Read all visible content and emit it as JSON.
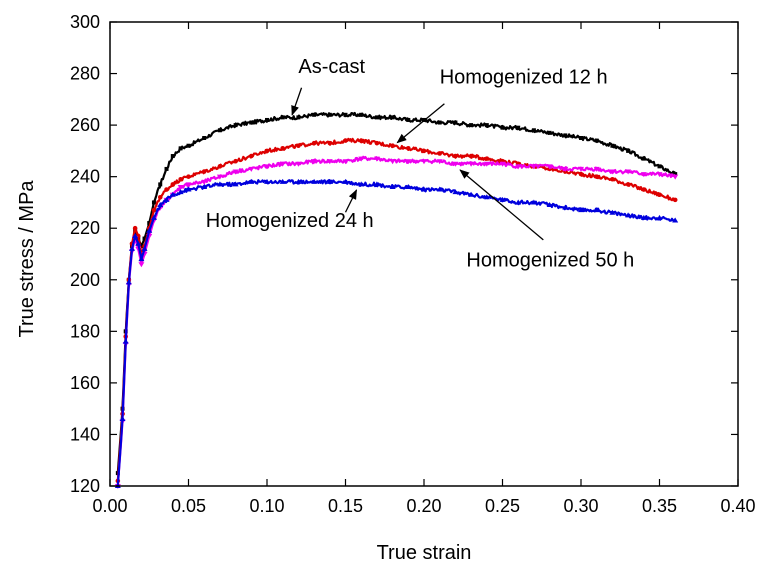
{
  "chart_data": {
    "type": "line",
    "title": "",
    "xlabel": "True strain",
    "ylabel": "True stress / MPa",
    "xlim": [
      0.0,
      0.4
    ],
    "ylim": [
      120,
      300
    ],
    "xticks": [
      "0.00",
      "0.05",
      "0.10",
      "0.15",
      "0.20",
      "0.25",
      "0.30",
      "0.35",
      "0.40"
    ],
    "yticks": [
      "120",
      "140",
      "160",
      "180",
      "200",
      "220",
      "240",
      "260",
      "280",
      "300"
    ],
    "grid": false,
    "legend": "none",
    "series": [
      {
        "name": "As-cast",
        "color": "#000000",
        "marker": "square",
        "x": [
          0.005,
          0.008,
          0.01,
          0.012,
          0.014,
          0.016,
          0.018,
          0.02,
          0.022,
          0.025,
          0.028,
          0.032,
          0.036,
          0.04,
          0.045,
          0.05,
          0.06,
          0.07,
          0.08,
          0.09,
          0.1,
          0.11,
          0.12,
          0.13,
          0.14,
          0.15,
          0.16,
          0.17,
          0.18,
          0.19,
          0.2,
          0.21,
          0.22,
          0.23,
          0.24,
          0.25,
          0.26,
          0.27,
          0.28,
          0.29,
          0.3,
          0.31,
          0.32,
          0.33,
          0.34,
          0.35,
          0.36
        ],
        "y": [
          125,
          150,
          180,
          200,
          213,
          219,
          216,
          213,
          216,
          222,
          230,
          237,
          243,
          248,
          251,
          252,
          255,
          258,
          260,
          261,
          262,
          263,
          263,
          264,
          264,
          264,
          264,
          263,
          263,
          262,
          262,
          261,
          261,
          260,
          260,
          259,
          259,
          258,
          257,
          256,
          255,
          254,
          252,
          250,
          247,
          244,
          241
        ]
      },
      {
        "name": "Homogenized 12 h",
        "color": "#dd0000",
        "marker": "circle",
        "x": [
          0.005,
          0.008,
          0.01,
          0.012,
          0.014,
          0.016,
          0.018,
          0.02,
          0.022,
          0.025,
          0.028,
          0.032,
          0.036,
          0.04,
          0.045,
          0.05,
          0.06,
          0.07,
          0.08,
          0.09,
          0.1,
          0.11,
          0.12,
          0.13,
          0.14,
          0.15,
          0.16,
          0.17,
          0.18,
          0.19,
          0.2,
          0.21,
          0.22,
          0.23,
          0.24,
          0.25,
          0.26,
          0.27,
          0.28,
          0.29,
          0.3,
          0.31,
          0.32,
          0.33,
          0.34,
          0.35,
          0.36
        ],
        "y": [
          122,
          148,
          178,
          200,
          214,
          220,
          217,
          210,
          213,
          220,
          227,
          232,
          235,
          237,
          239,
          240,
          242,
          244,
          246,
          248,
          250,
          251,
          252,
          253,
          253,
          254,
          254,
          253,
          252,
          251,
          250,
          249,
          248,
          248,
          247,
          246,
          245,
          244,
          243,
          242,
          241,
          240,
          239,
          237,
          235,
          233,
          231
        ]
      },
      {
        "name": "Homogenized 50 h",
        "color": "#ee00ee",
        "marker": "triangle-down",
        "x": [
          0.005,
          0.008,
          0.01,
          0.012,
          0.014,
          0.016,
          0.018,
          0.02,
          0.022,
          0.025,
          0.028,
          0.032,
          0.036,
          0.04,
          0.045,
          0.05,
          0.06,
          0.07,
          0.08,
          0.09,
          0.1,
          0.11,
          0.12,
          0.13,
          0.14,
          0.15,
          0.16,
          0.17,
          0.18,
          0.19,
          0.2,
          0.21,
          0.22,
          0.23,
          0.24,
          0.25,
          0.26,
          0.27,
          0.28,
          0.29,
          0.3,
          0.31,
          0.32,
          0.33,
          0.34,
          0.35,
          0.36
        ],
        "y": [
          120,
          145,
          175,
          198,
          211,
          216,
          212,
          206,
          210,
          217,
          223,
          228,
          231,
          233,
          236,
          237,
          238,
          240,
          242,
          243,
          244,
          245,
          245,
          246,
          246,
          246,
          247,
          247,
          246,
          246,
          246,
          246,
          245,
          245,
          245,
          245,
          244,
          244,
          244,
          243,
          243,
          243,
          242,
          242,
          241,
          241,
          240
        ]
      },
      {
        "name": "Homogenized 24 h",
        "color": "#0000dd",
        "marker": "triangle-up",
        "x": [
          0.005,
          0.008,
          0.01,
          0.012,
          0.014,
          0.016,
          0.018,
          0.02,
          0.022,
          0.025,
          0.028,
          0.032,
          0.036,
          0.04,
          0.045,
          0.05,
          0.06,
          0.07,
          0.08,
          0.09,
          0.1,
          0.11,
          0.12,
          0.13,
          0.14,
          0.15,
          0.16,
          0.17,
          0.18,
          0.19,
          0.2,
          0.21,
          0.22,
          0.23,
          0.24,
          0.25,
          0.26,
          0.27,
          0.28,
          0.29,
          0.3,
          0.31,
          0.32,
          0.33,
          0.34,
          0.35,
          0.36
        ],
        "y": [
          120,
          146,
          176,
          199,
          212,
          217,
          214,
          208,
          212,
          219,
          224,
          229,
          231,
          233,
          234,
          235,
          236,
          237,
          237,
          238,
          238,
          238,
          238,
          238,
          238,
          238,
          237,
          237,
          236,
          236,
          235,
          235,
          234,
          233,
          232,
          231,
          230,
          230,
          229,
          228,
          227,
          227,
          226,
          225,
          224,
          224,
          223
        ]
      }
    ],
    "annotations": [
      {
        "text": "As-cast",
        "text_x": 0.12,
        "text_y": 280.2,
        "anchor": "start",
        "arrow_from": [
          0.122,
          274.5
        ],
        "arrow_to": [
          0.116,
          264.0
        ]
      },
      {
        "text": "Homogenized 12 h",
        "text_x": 0.21,
        "text_y": 276.2,
        "anchor": "start",
        "arrow_from": [
          0.213,
          268.3
        ],
        "arrow_to": [
          0.183,
          253.2
        ]
      },
      {
        "text": "Homogenized 24 h",
        "text_x": 0.061,
        "text_y": 220.4,
        "anchor": "start",
        "arrow_from": [
          0.15,
          226.2
        ],
        "arrow_to": [
          0.157,
          234.8
        ]
      },
      {
        "text": "Homogenized 50 h",
        "text_x": 0.227,
        "text_y": 205.1,
        "anchor": "start",
        "arrow_from": [
          0.276,
          215.5
        ],
        "arrow_to": [
          0.223,
          242.6
        ]
      }
    ]
  }
}
